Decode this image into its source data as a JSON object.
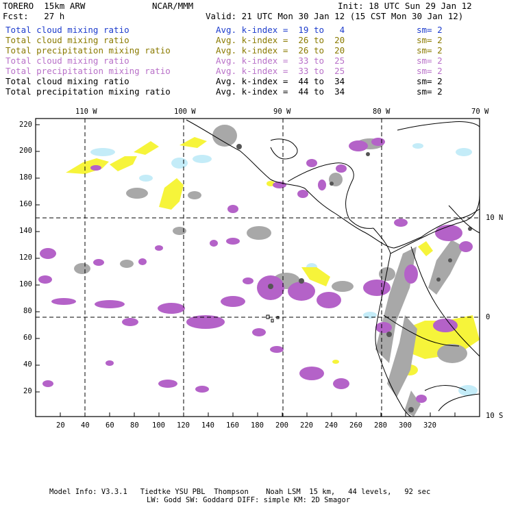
{
  "header": {
    "model_label": "TORERO  15km ARW",
    "org_label": "NCAR/MMM",
    "init_label": "Init: 18 UTC Sun 29 Jan 12",
    "fcst_label": "Fcst:   27 h",
    "valid_label": "Valid: 21 UTC Mon 30 Jan 12 (15 CST Mon 30 Jan 12)"
  },
  "legend": [
    {
      "field": "Total cloud mixing ratio",
      "kindex": "Avg. k-index =  19 to   4",
      "sm": "sm= 2",
      "color": "#1d3ccc"
    },
    {
      "field": "Total cloud mixing ratio",
      "kindex": "Avg. k-index =  26 to  20",
      "sm": "sm= 2",
      "color": "#8a7a00"
    },
    {
      "field": "Total precipitation mixing ratio",
      "kindex": "Avg. k-index =  26 to  20",
      "sm": "sm= 2",
      "color": "#8a7a00"
    },
    {
      "field": "Total cloud mixing ratio",
      "kindex": "Avg. k-index =  33 to  25",
      "sm": "sm= 2",
      "color": "#b870c8"
    },
    {
      "field": "Total precipitation mixing ratio",
      "kindex": "Avg. k-index =  33 to  25",
      "sm": "sm= 2",
      "color": "#b870c8"
    },
    {
      "field": "Total cloud mixing ratio",
      "kindex": "Avg. k-index =  44 to  34",
      "sm": "sm= 2",
      "color": "#000000"
    },
    {
      "field": "Total precipitation mixing ratio",
      "kindex": "Avg. k-index =  44 to  34",
      "sm": "sm= 2",
      "color": "#000000"
    }
  ],
  "map": {
    "x_ticks": [
      "20",
      "40",
      "60",
      "80",
      "100",
      "120",
      "140",
      "160",
      "180",
      "200",
      "220",
      "240",
      "260",
      "280",
      "300",
      "320"
    ],
    "y_ticks": [
      "20",
      "40",
      "60",
      "80",
      "100",
      "120",
      "140",
      "160",
      "180",
      "200",
      "220"
    ],
    "lon_labels": [
      "110 W",
      "100 W",
      "90 W",
      "80 W",
      "70 W"
    ],
    "lat_labels": [
      "10 N",
      "0",
      "10 S"
    ],
    "colors": {
      "light_blue": "#c4ecf8",
      "yellow": "#f6f43a",
      "gray": "#a8a8a8",
      "purple": "#b462c8",
      "dark": "#555555"
    }
  },
  "footer": {
    "line1": "Model Info: V3.3.1   Tiedtke YSU PBL  Thompson    Noah LSM  15 km,   44 levels,   92 sec",
    "line2": "LW: Godd SW: Goddard DIFF: simple KM: 2D Smagor"
  }
}
